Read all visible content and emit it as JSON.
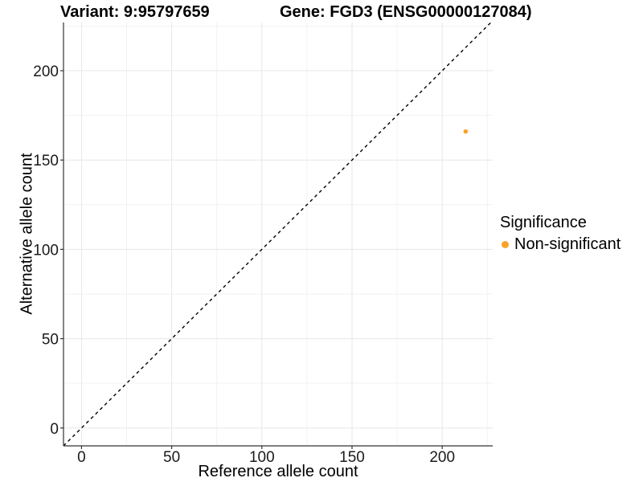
{
  "header": {
    "variant_title": "Variant: 9:95797659",
    "gene_title": "Gene: FGD3 (ENSG00000127084)"
  },
  "chart_data": {
    "type": "scatter",
    "titles": [
      "Variant: 9:95797659",
      "Gene: FGD3 (ENSG00000127084)"
    ],
    "xlabel": "Reference allele count",
    "ylabel": "Alternative allele count",
    "xlim": [
      -10,
      228
    ],
    "ylim": [
      -10,
      227
    ],
    "x_ticks": [
      0,
      50,
      100,
      150,
      200
    ],
    "y_ticks": [
      0,
      50,
      100,
      150,
      200
    ],
    "minor_tick_step": 25,
    "grid": true,
    "identity_line": {
      "style": "dashed",
      "from": [
        -10,
        -10
      ],
      "to": [
        227,
        227
      ],
      "color": "#000000"
    },
    "points": [
      {
        "x": 213,
        "y": 166,
        "series": "Non-significant",
        "color": "#F9A32A",
        "radius_px": 2.8
      }
    ],
    "legend": {
      "position": "right",
      "title": "Significance",
      "items": [
        {
          "label": "Non-significant",
          "color": "#F9A32A"
        }
      ]
    },
    "colors": {
      "grid_major": "#E7E7E7",
      "grid_minor": "#F2F2F2",
      "axis_line": "#333333",
      "tick_text": "#1A1A1A"
    }
  }
}
